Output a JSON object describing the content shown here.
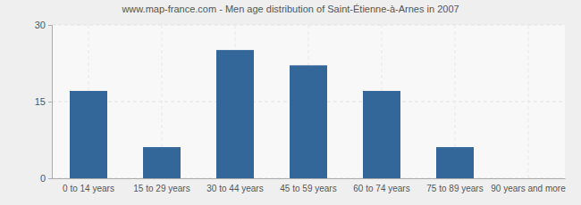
{
  "chart_data": {
    "type": "bar",
    "title": "www.map-france.com - Men age distribution of Saint-Étienne-à-Arnes in 2007",
    "categories": [
      "0 to 14 years",
      "15 to 29 years",
      "30 to 44 years",
      "45 to 59 years",
      "60 to 74 years",
      "75 to 89 years",
      "90 years and more"
    ],
    "values": [
      17,
      6,
      25,
      22,
      17,
      6,
      0
    ],
    "color": "#336699",
    "ylim": [
      0,
      30
    ],
    "yticks": [
      0,
      15,
      30
    ],
    "grid": true
  }
}
